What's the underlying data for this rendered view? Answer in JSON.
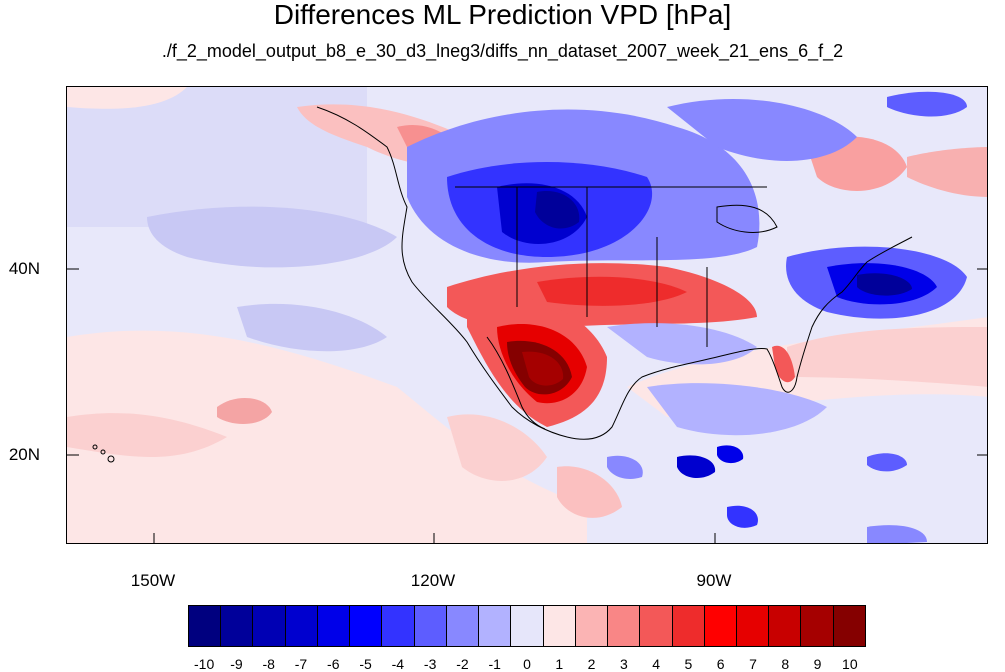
{
  "title": "Differences ML Prediction VPD [hPa]",
  "subtitle": "./f_2_model_output_b8_e_30_d3_lneg3/diffs_nn_dataset_2007_week_21_ens_6_f_2",
  "axes": {
    "y_labels": [
      "40N",
      "20N"
    ],
    "x_labels": [
      "150W",
      "120W",
      "90W"
    ]
  },
  "colorbar": {
    "labels": [
      "-10",
      "-9",
      "-8",
      "-7",
      "-6",
      "-5",
      "-4",
      "-3",
      "-2",
      "-1",
      "0",
      "1",
      "2",
      "3",
      "4",
      "5",
      "6",
      "7",
      "8",
      "9",
      "10"
    ],
    "colors": [
      "#00007f",
      "#00009a",
      "#0000b4",
      "#0000cf",
      "#0000e9",
      "#0000ff",
      "#3333ff",
      "#5d5dff",
      "#8888ff",
      "#b2b2ff",
      "#e6e6fa",
      "#fde6e6",
      "#fbb4b4",
      "#f98686",
      "#f35858",
      "#ee2c2c",
      "#ff0000",
      "#e60000",
      "#c80000",
      "#a50000",
      "#850000"
    ]
  },
  "map": {
    "background_color": "#e8e8fa",
    "projection": "cylindrical-equidistant",
    "lon_range": [
      -160.5,
      -61.8
    ],
    "lat_range": [
      10.5,
      59.5
    ]
  }
}
